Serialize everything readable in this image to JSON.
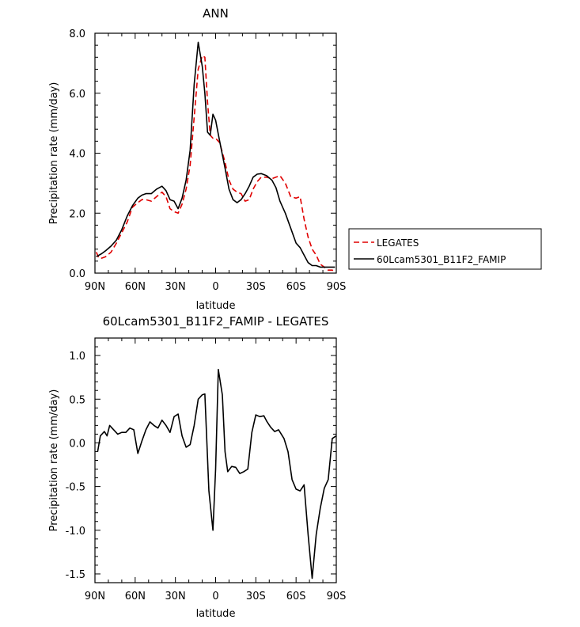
{
  "chart_data": [
    {
      "type": "line",
      "title": "ANN",
      "xlabel": "latitude",
      "ylabel": "Precipitation rate (mm/day)",
      "xlim": [
        90,
        -90
      ],
      "ylim": [
        0,
        8
      ],
      "xticks": [
        90,
        60,
        30,
        0,
        -30,
        -60,
        -90
      ],
      "xtick_labels": [
        "90N",
        "60N",
        "30N",
        "0",
        "30S",
        "60S",
        "90S"
      ],
      "yticks": [
        0,
        2,
        4,
        6,
        8
      ],
      "ytick_labels": [
        "0.0",
        "2.0",
        "4.0",
        "6.0",
        "8.0"
      ],
      "legend": {
        "position": "right",
        "entries": [
          "LEGATES",
          "60Lcam5301_B11F2_FAMIP"
        ]
      },
      "series": [
        {
          "name": "LEGATES",
          "color": "#e00000",
          "dash": "dashed",
          "x": [
            89,
            87,
            85,
            82,
            78,
            74,
            70,
            66,
            62,
            58,
            55,
            52,
            48,
            44,
            40,
            37,
            34,
            31,
            28,
            25,
            22,
            19,
            16,
            13,
            10,
            8,
            6,
            4,
            2,
            0,
            -3,
            -7,
            -10,
            -13,
            -16,
            -19,
            -22,
            -25,
            -28,
            -31,
            -34,
            -38,
            -42,
            -45,
            -48,
            -52,
            -56,
            -60,
            -63,
            -66,
            -69,
            -72,
            -75,
            -78,
            -81,
            -84,
            -87,
            -89
          ],
          "y": [
            0.7,
            0.5,
            0.5,
            0.55,
            0.7,
            1.0,
            1.35,
            1.7,
            2.2,
            2.35,
            2.45,
            2.45,
            2.4,
            2.55,
            2.7,
            2.55,
            2.15,
            2.05,
            2.0,
            2.3,
            2.8,
            3.6,
            5.2,
            6.8,
            7.25,
            7.2,
            5.7,
            4.6,
            4.5,
            4.5,
            4.35,
            3.7,
            3.1,
            2.8,
            2.7,
            2.65,
            2.4,
            2.45,
            2.8,
            3.05,
            3.2,
            3.2,
            3.15,
            3.2,
            3.25,
            3.0,
            2.55,
            2.5,
            2.55,
            1.8,
            1.2,
            0.8,
            0.6,
            0.3,
            0.2,
            0.1,
            0.1,
            0.05
          ]
        },
        {
          "name": "60Lcam5301_B11F2_FAMIP",
          "color": "#000000",
          "dash": "solid",
          "x": [
            89,
            87,
            85,
            82,
            78,
            74,
            70,
            66,
            62,
            58,
            55,
            52,
            48,
            44,
            40,
            37,
            34,
            31,
            28,
            25,
            22,
            19,
            16,
            13,
            10,
            8,
            6,
            4,
            2,
            0,
            -3,
            -7,
            -10,
            -13,
            -16,
            -19,
            -22,
            -25,
            -28,
            -31,
            -34,
            -38,
            -42,
            -45,
            -48,
            -52,
            -56,
            -60,
            -63,
            -66,
            -69,
            -72,
            -75,
            -78,
            -81,
            -84,
            -87,
            -89
          ],
          "y": [
            0.55,
            0.6,
            0.65,
            0.75,
            0.9,
            1.1,
            1.45,
            1.9,
            2.25,
            2.5,
            2.6,
            2.65,
            2.65,
            2.8,
            2.9,
            2.75,
            2.45,
            2.4,
            2.15,
            2.5,
            3.1,
            4.1,
            6.3,
            7.7,
            6.9,
            6.0,
            4.7,
            4.6,
            5.3,
            5.1,
            4.4,
            3.5,
            2.8,
            2.45,
            2.35,
            2.45,
            2.65,
            2.9,
            3.2,
            3.3,
            3.32,
            3.25,
            3.1,
            2.85,
            2.4,
            2.0,
            1.5,
            1.0,
            0.85,
            0.6,
            0.35,
            0.25,
            0.25,
            0.2,
            0.2,
            0.2,
            0.2,
            0.2
          ]
        }
      ]
    },
    {
      "type": "line",
      "title": "60Lcam5301_B11F2_FAMIP - LEGATES",
      "xlabel": "latitude",
      "ylabel": "Precipitation rate (mm/day)",
      "xlim": [
        90,
        -90
      ],
      "ylim": [
        -1.6,
        1.2
      ],
      "xticks": [
        90,
        60,
        30,
        0,
        -30,
        -60,
        -90
      ],
      "xtick_labels": [
        "90N",
        "60N",
        "30N",
        "0",
        "30S",
        "60S",
        "90S"
      ],
      "yticks": [
        -1.5,
        -1.0,
        -0.5,
        0.0,
        0.5,
        1.0
      ],
      "ytick_labels": [
        "-1.5",
        "-1.0",
        "-0.5",
        "0.0",
        "0.5",
        "1.0"
      ],
      "series": [
        {
          "name": "",
          "color": "#000000",
          "dash": "solid",
          "x": [
            88,
            86,
            83,
            81,
            79,
            76,
            73,
            70,
            67,
            64,
            61,
            58,
            55,
            52,
            49,
            46,
            43,
            40,
            37,
            34,
            31,
            28,
            25,
            22,
            19,
            16,
            13,
            10,
            8,
            5,
            2,
            0,
            -2,
            -5,
            -7,
            -9,
            -12,
            -15,
            -18,
            -21,
            -24,
            -27,
            -30,
            -33,
            -36,
            -38,
            -41,
            -44,
            -47,
            -51,
            -54,
            -57,
            -60,
            -63,
            -66,
            -69,
            -72,
            -75,
            -78,
            -81,
            -84,
            -87,
            -90
          ],
          "y": [
            -0.1,
            0.08,
            0.13,
            0.08,
            0.2,
            0.15,
            0.1,
            0.12,
            0.12,
            0.17,
            0.15,
            -0.12,
            0.02,
            0.15,
            0.24,
            0.2,
            0.17,
            0.26,
            0.2,
            0.12,
            0.3,
            0.33,
            0.08,
            -0.05,
            -0.02,
            0.2,
            0.5,
            0.55,
            0.56,
            -0.55,
            -1.0,
            -0.3,
            0.84,
            0.55,
            -0.1,
            -0.33,
            -0.27,
            -0.28,
            -0.35,
            -0.33,
            -0.3,
            0.12,
            0.32,
            0.3,
            0.31,
            0.25,
            0.18,
            0.13,
            0.15,
            0.05,
            -0.1,
            -0.42,
            -0.53,
            -0.55,
            -0.48,
            -1.05,
            -1.55,
            -1.05,
            -0.75,
            -0.52,
            -0.42,
            0.05,
            0.08
          ]
        }
      ]
    }
  ]
}
